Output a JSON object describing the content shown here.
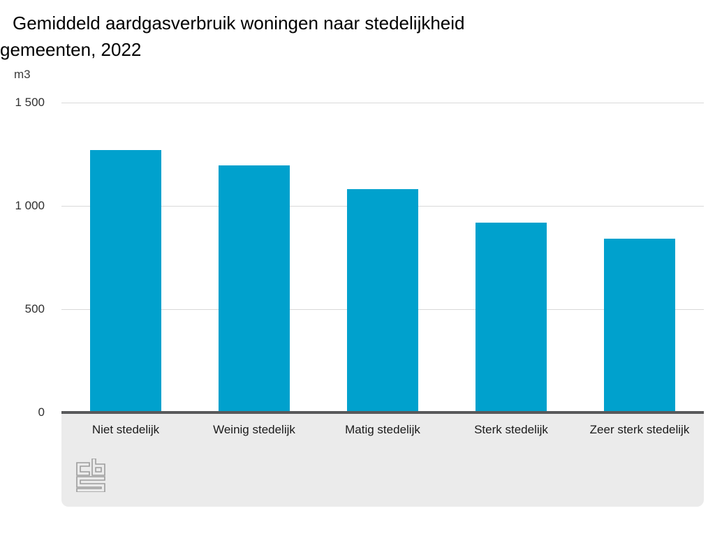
{
  "title_lines": {
    "line1": "Gemiddeld aardgasverbruik woningen naar stedelijkheid",
    "line2": "gemeenten, 2022"
  },
  "colors": {
    "bar": "#00a1cd",
    "gridline": "#d9d9d9",
    "zero_line": "#58595b",
    "footer_bg": "#ebebeb",
    "logo": "#9d9d9d",
    "title_text": "#000000",
    "tick_text": "#303030"
  },
  "source_logo": "CBS",
  "chart_data": {
    "type": "bar",
    "title": "Gemiddeld aardgasverbruik woningen naar stedelijkheid gemeenten, 2022",
    "categories": [
      "Niet stedelijk",
      "Weinig stedelijk",
      "Matig stedelijk",
      "Sterk stedelijk",
      "Zeer sterk stedelijk"
    ],
    "values": [
      1270,
      1195,
      1080,
      920,
      840
    ],
    "series_name": "Gemiddeld aardgasverbruik",
    "xlabel": "",
    "ylabel": "m3",
    "ylim": [
      0,
      1500
    ],
    "yticks": [
      1500,
      1000,
      500,
      0
    ],
    "ytick_labels": [
      "1 500",
      "1 000",
      "500",
      "0"
    ],
    "grid": true,
    "legend": false,
    "bar_color": "#00a1cd"
  }
}
